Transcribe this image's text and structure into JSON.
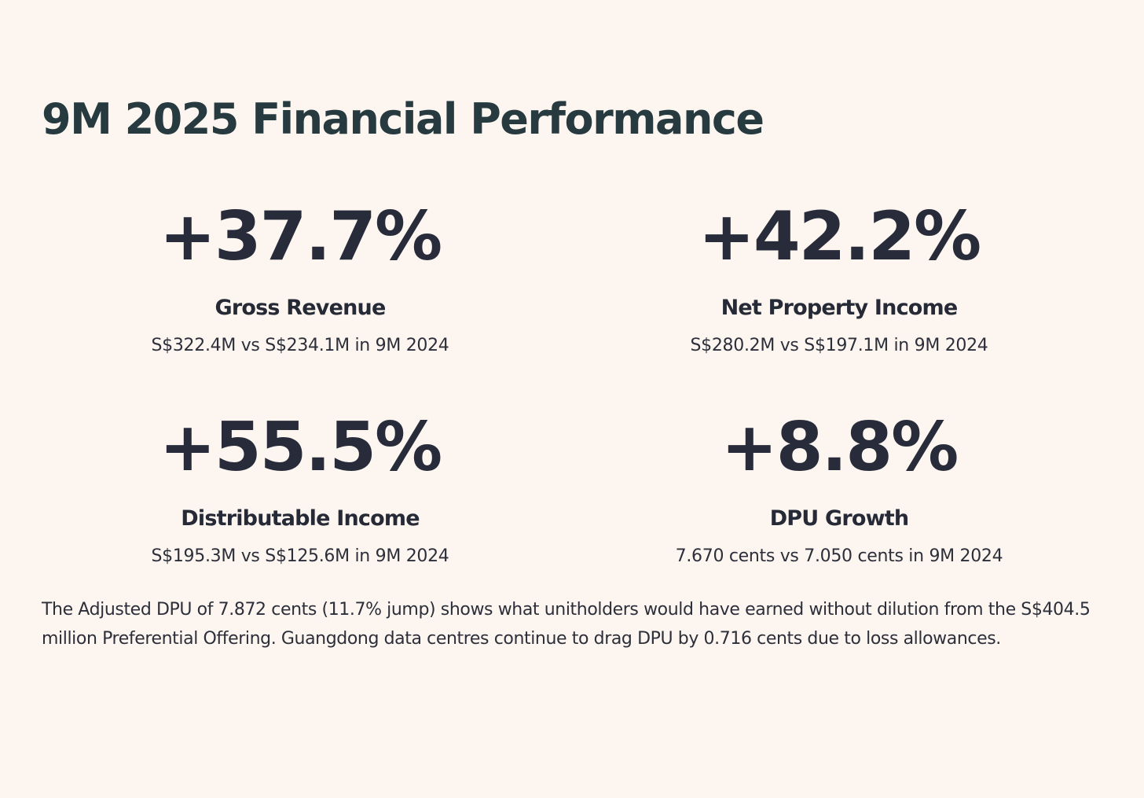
{
  "page": {
    "title": "9M 2025 Financial Performance"
  },
  "metrics": [
    {
      "value": "+37.7%",
      "label": "Gross Revenue",
      "detail": "S$322.4M vs S$234.1M in 9M 2024"
    },
    {
      "value": "+42.2%",
      "label": "Net Property Income",
      "detail": "S$280.2M vs S$197.1M in 9M 2024"
    },
    {
      "value": "+55.5%",
      "label": "Distributable Income",
      "detail": "S$195.3M vs S$125.6M in 9M 2024"
    },
    {
      "value": "+8.8%",
      "label": "DPU Growth",
      "detail": "7.670 cents vs 7.050 cents in 9M 2024"
    }
  ],
  "footnote": "The Adjusted DPU of 7.872 cents (11.7% jump) shows what unitholders would have earned without dilution from the S$404.5 million Preferential Offering. Guangdong data centres continue to drag DPU by 0.716 cents due to loss allowances.",
  "colors": {
    "background": "#fdf6f0",
    "title": "#263a3f",
    "text": "#282c3a"
  }
}
